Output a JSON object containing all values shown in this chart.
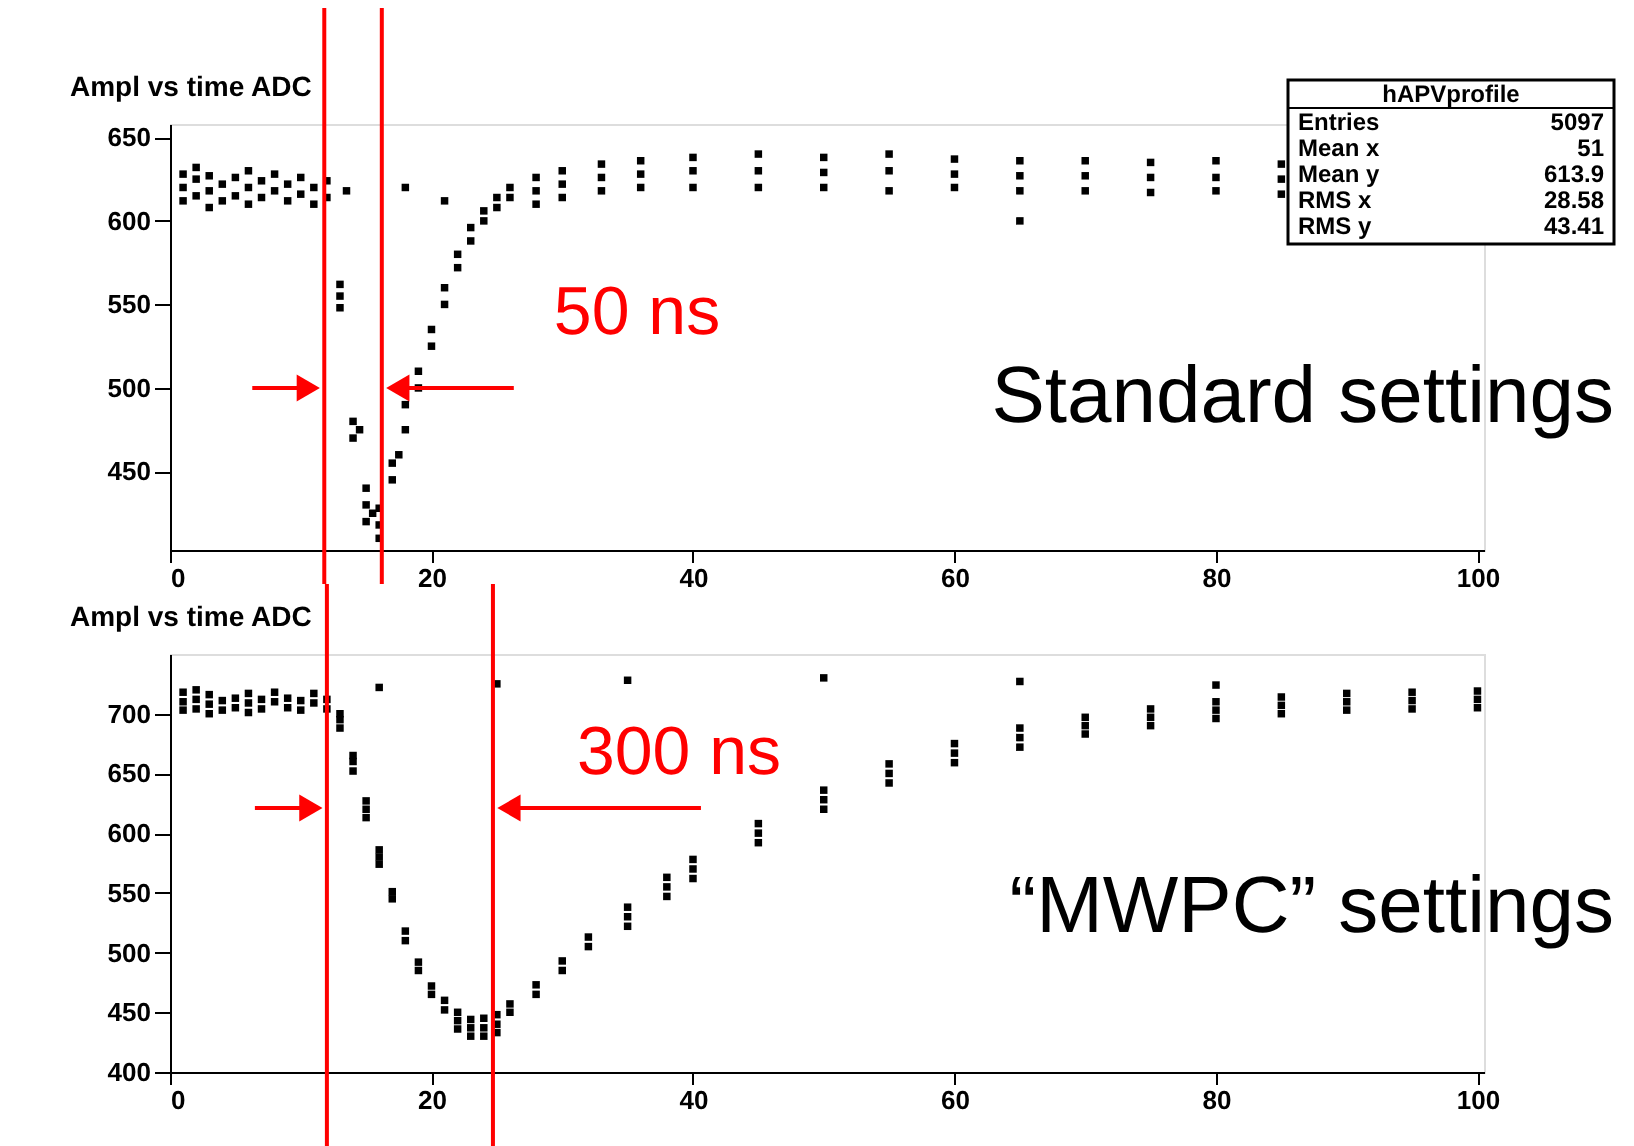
{
  "chart_data": [
    {
      "type": "scatter",
      "title": "Ampl vs time ADC",
      "color": "#000000",
      "marker": "square",
      "legend": false,
      "grid": false,
      "x": [
        1,
        1,
        1,
        2,
        2,
        2,
        3,
        3,
        3,
        4,
        4,
        5,
        5,
        6,
        6,
        6,
        7,
        7,
        8,
        8,
        9,
        9,
        10,
        10,
        11,
        11,
        12,
        12,
        13,
        13,
        13,
        13.5,
        14,
        14,
        14.5,
        15,
        15,
        15,
        15.5,
        16,
        16,
        16,
        17,
        17,
        17.5,
        18,
        18,
        18,
        19,
        19,
        20,
        20,
        21,
        21,
        21,
        22,
        22,
        23,
        23,
        24,
        24,
        25,
        25,
        26,
        26,
        28,
        28,
        28,
        30,
        30,
        30,
        33,
        33,
        33,
        36,
        36,
        36,
        40,
        40,
        40,
        45,
        45,
        45,
        50,
        50,
        50,
        55,
        55,
        55,
        60,
        60,
        60,
        65,
        65,
        65,
        65,
        70,
        70,
        70,
        75,
        75,
        75,
        80,
        80,
        80,
        85,
        85,
        85
      ],
      "values": [
        620,
        628,
        612,
        625,
        615,
        632,
        618,
        608,
        627,
        622,
        612,
        626,
        615,
        620,
        610,
        630,
        624,
        614,
        618,
        628,
        622,
        612,
        626,
        616,
        620,
        610,
        624,
        614,
        555,
        548,
        562,
        618,
        480,
        470,
        475,
        430,
        440,
        420,
        425,
        418,
        428,
        410,
        445,
        455,
        460,
        475,
        490,
        620,
        500,
        510,
        525,
        535,
        550,
        560,
        612,
        572,
        580,
        588,
        596,
        600,
        606,
        608,
        614,
        614,
        620,
        618,
        626,
        610,
        622,
        630,
        614,
        626,
        634,
        618,
        628,
        636,
        620,
        630,
        638,
        620,
        630,
        640,
        620,
        629,
        638,
        620,
        630,
        640,
        618,
        628,
        637,
        620,
        627,
        636,
        618,
        600,
        627,
        636,
        618,
        626,
        635,
        617,
        626,
        636,
        618,
        625,
        634,
        616
      ],
      "xlim": [
        0,
        100.5
      ],
      "ylim": [
        403,
        658
      ],
      "xticks": [
        0,
        20,
        40,
        60,
        80,
        100
      ],
      "yticks": [
        450,
        500,
        550,
        600,
        650
      ],
      "ref_lines": [
        {
          "axis": "x",
          "value": 11.8,
          "color": "#ff0000"
        },
        {
          "axis": "x",
          "value": 16.2,
          "color": "#ff0000",
          "label": "50 ns"
        }
      ],
      "annotations": [
        "Standard settings",
        "hAPVprofile",
        "Entries 5097",
        "Mean x 51",
        "Mean y 613.9",
        "RMS x 28.58",
        "RMS y 43.41"
      ]
    },
    {
      "type": "scatter",
      "title": "Ampl vs time ADC",
      "color": "#000000",
      "marker": "square",
      "legend": false,
      "grid": false,
      "x": [
        1,
        1,
        1,
        2,
        2,
        2,
        3,
        3,
        3,
        4,
        4,
        5,
        5,
        6,
        6,
        6,
        7,
        7,
        8,
        8,
        9,
        9,
        10,
        10,
        11,
        11,
        12,
        12,
        13,
        13,
        13,
        14,
        14,
        14,
        15,
        15,
        15,
        16,
        16,
        16,
        17,
        17,
        18,
        18,
        19,
        19,
        20,
        20,
        21,
        21,
        22,
        22,
        22,
        23,
        23,
        23,
        24,
        24,
        24,
        25,
        25,
        25,
        26,
        26,
        28,
        28,
        30,
        30,
        32,
        32,
        35,
        35,
        35,
        38,
        38,
        38,
        40,
        40,
        40,
        45,
        45,
        45,
        50,
        50,
        50,
        55,
        55,
        55,
        60,
        60,
        60,
        65,
        65,
        65,
        70,
        70,
        70,
        75,
        75,
        75,
        80,
        80,
        80,
        85,
        85,
        85,
        90,
        90,
        90,
        95,
        95,
        95,
        100,
        100,
        100,
        16,
        25,
        35,
        50,
        65,
        80
      ],
      "values": [
        710,
        718,
        703,
        712,
        704,
        720,
        708,
        716,
        700,
        711,
        703,
        713,
        705,
        709,
        717,
        701,
        712,
        704,
        710,
        718,
        713,
        705,
        711,
        703,
        709,
        717,
        712,
        704,
        695,
        700,
        688,
        660,
        665,
        652,
        620,
        627,
        613,
        580,
        586,
        574,
        545,
        551,
        510,
        518,
        485,
        492,
        465,
        472,
        452,
        460,
        443,
        450,
        436,
        437,
        444,
        430,
        437,
        445,
        430,
        440,
        448,
        433,
        450,
        457,
        465,
        473,
        485,
        493,
        505,
        513,
        530,
        538,
        522,
        555,
        563,
        547,
        570,
        578,
        562,
        600,
        608,
        592,
        628,
        636,
        620,
        650,
        658,
        642,
        667,
        675,
        659,
        680,
        688,
        672,
        690,
        697,
        683,
        697,
        704,
        690,
        703,
        710,
        696,
        707,
        714,
        700,
        710,
        717,
        703,
        711,
        718,
        704,
        712,
        719,
        705,
        722,
        725,
        728,
        730,
        727,
        724
      ],
      "xlim": [
        0,
        100.5
      ],
      "ylim": [
        400,
        750
      ],
      "xticks": [
        0,
        20,
        40,
        60,
        80,
        100
      ],
      "yticks": [
        400,
        450,
        500,
        550,
        600,
        650,
        700
      ],
      "ref_lines": [
        {
          "axis": "x",
          "value": 12,
          "color": "#ff0000"
        },
        {
          "axis": "x",
          "value": 24.7,
          "color": "#ff0000",
          "label": "300 ns"
        }
      ],
      "annotations": [
        "“MWPC” settings"
      ]
    }
  ]
}
